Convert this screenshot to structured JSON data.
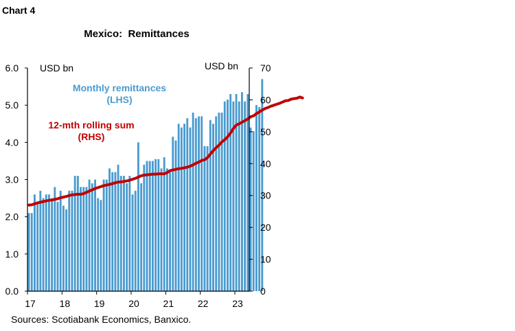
{
  "header": {
    "chart_label": "Chart 4"
  },
  "footer": {
    "source": "Sources: Scotiabank Economics, Banxico."
  },
  "colors": {
    "bars": "#4a9bd0",
    "line": "#c00000",
    "bar_label": "#4a9bd0",
    "line_label": "#c00000"
  },
  "chart_data": {
    "type": "bar",
    "title": "Mexico:  Remittances",
    "left_axis": {
      "unit": "USD bn",
      "ticks": [
        "0.0",
        "1.0",
        "2.0",
        "3.0",
        "4.0",
        "5.0",
        "6.0"
      ],
      "range": [
        0,
        6
      ]
    },
    "right_axis": {
      "unit": "USD bn",
      "ticks": [
        "0",
        "10",
        "20",
        "30",
        "40",
        "50",
        "60",
        "70"
      ],
      "range": [
        0,
        70
      ]
    },
    "x_tick_labels": [
      "17",
      "18",
      "19",
      "20",
      "21",
      "22",
      "23"
    ],
    "x_range": [
      2017.0,
      2023.417
    ],
    "annotations": {
      "bars_label": [
        "Monthly remittances",
        "(LHS)"
      ],
      "line_label": [
        "12-mth rolling sum",
        "(RHS)"
      ]
    },
    "series": [
      {
        "name": "Monthly remittances (LHS)",
        "axis": "left",
        "kind": "bar",
        "start": "2017-01",
        "values": [
          2.1,
          2.1,
          2.6,
          2.4,
          2.7,
          2.5,
          2.6,
          2.6,
          2.5,
          2.8,
          2.4,
          2.7,
          2.3,
          2.2,
          2.7,
          2.7,
          3.1,
          3.1,
          2.8,
          2.8,
          2.8,
          3.0,
          2.9,
          3.0,
          2.5,
          2.45,
          3.0,
          3.0,
          3.3,
          3.2,
          3.2,
          3.4,
          3.1,
          3.1,
          2.9,
          3.1,
          2.6,
          2.7,
          4.0,
          2.9,
          3.4,
          3.5,
          3.5,
          3.5,
          3.55,
          3.55,
          3.3,
          3.6,
          3.3,
          3.2,
          4.15,
          4.05,
          4.5,
          4.4,
          4.5,
          4.65,
          4.4,
          4.8,
          4.65,
          4.7,
          4.7,
          3.9,
          3.9,
          4.6,
          4.5,
          4.7,
          4.8,
          4.8,
          5.1,
          5.15,
          5.3,
          5.1,
          5.3,
          5.1,
          5.35,
          5.1,
          5.3,
          4.4,
          4.3,
          5.0,
          4.95,
          5.7
        ]
      },
      {
        "name": "12-mth rolling sum (RHS)",
        "axis": "right",
        "kind": "line",
        "start": "2017-01",
        "values": [
          27.0,
          27.1,
          27.4,
          27.7,
          27.9,
          28.1,
          28.3,
          28.5,
          28.6,
          28.8,
          29.0,
          29.3,
          29.5,
          29.7,
          30.0,
          30.2,
          30.3,
          30.4,
          30.4,
          30.6,
          31.0,
          31.4,
          31.8,
          32.2,
          32.5,
          32.8,
          33.1,
          33.3,
          33.5,
          33.7,
          34.0,
          34.2,
          34.3,
          34.4,
          34.6,
          34.8,
          35.1,
          35.4,
          35.8,
          36.2,
          36.4,
          36.5,
          36.6,
          36.7,
          36.7,
          36.8,
          36.8,
          36.8,
          37.2,
          37.8,
          38.0,
          38.2,
          38.4,
          38.5,
          38.7,
          38.9,
          39.2,
          39.6,
          40.1,
          40.5,
          41.0,
          41.2,
          41.9,
          43.0,
          44.1,
          45.0,
          45.8,
          46.8,
          47.5,
          48.4,
          49.6,
          51.0,
          52.1,
          52.5,
          53.0,
          53.5,
          54.0,
          54.7,
          55.0,
          55.7,
          56.2,
          56.8,
          57.3,
          57.6,
          58.0,
          58.3,
          58.6,
          58.9,
          59.3,
          59.7,
          59.8,
          60.2,
          60.4,
          60.5,
          60.9,
          60.6
        ]
      }
    ]
  }
}
